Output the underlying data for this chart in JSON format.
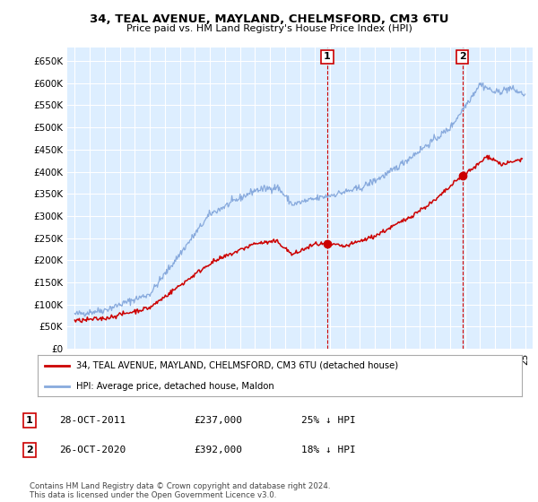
{
  "title": "34, TEAL AVENUE, MAYLAND, CHELMSFORD, CM3 6TU",
  "subtitle": "Price paid vs. HM Land Registry's House Price Index (HPI)",
  "ylabel_ticks": [
    "£0",
    "£50K",
    "£100K",
    "£150K",
    "£200K",
    "£250K",
    "£300K",
    "£350K",
    "£400K",
    "£450K",
    "£500K",
    "£550K",
    "£600K",
    "£650K"
  ],
  "ytick_values": [
    0,
    50000,
    100000,
    150000,
    200000,
    250000,
    300000,
    350000,
    400000,
    450000,
    500000,
    550000,
    600000,
    650000
  ],
  "ylim": [
    0,
    680000
  ],
  "xlim_start": 1994.5,
  "xlim_end": 2025.5,
  "sale1_date": 2011.82,
  "sale1_price": 237000,
  "sale2_date": 2020.82,
  "sale2_price": 392000,
  "legend_line1": "34, TEAL AVENUE, MAYLAND, CHELMSFORD, CM3 6TU (detached house)",
  "legend_line2": "HPI: Average price, detached house, Maldon",
  "table_row1": [
    "1",
    "28-OCT-2011",
    "£237,000",
    "25% ↓ HPI"
  ],
  "table_row2": [
    "2",
    "26-OCT-2020",
    "£392,000",
    "18% ↓ HPI"
  ],
  "footnote": "Contains HM Land Registry data © Crown copyright and database right 2024.\nThis data is licensed under the Open Government Licence v3.0.",
  "color_red": "#cc0000",
  "color_blue": "#88aadd",
  "background_plot": "#ddeeff",
  "grid_color": "#ffffff",
  "annotation_box_color": "#cc0000"
}
